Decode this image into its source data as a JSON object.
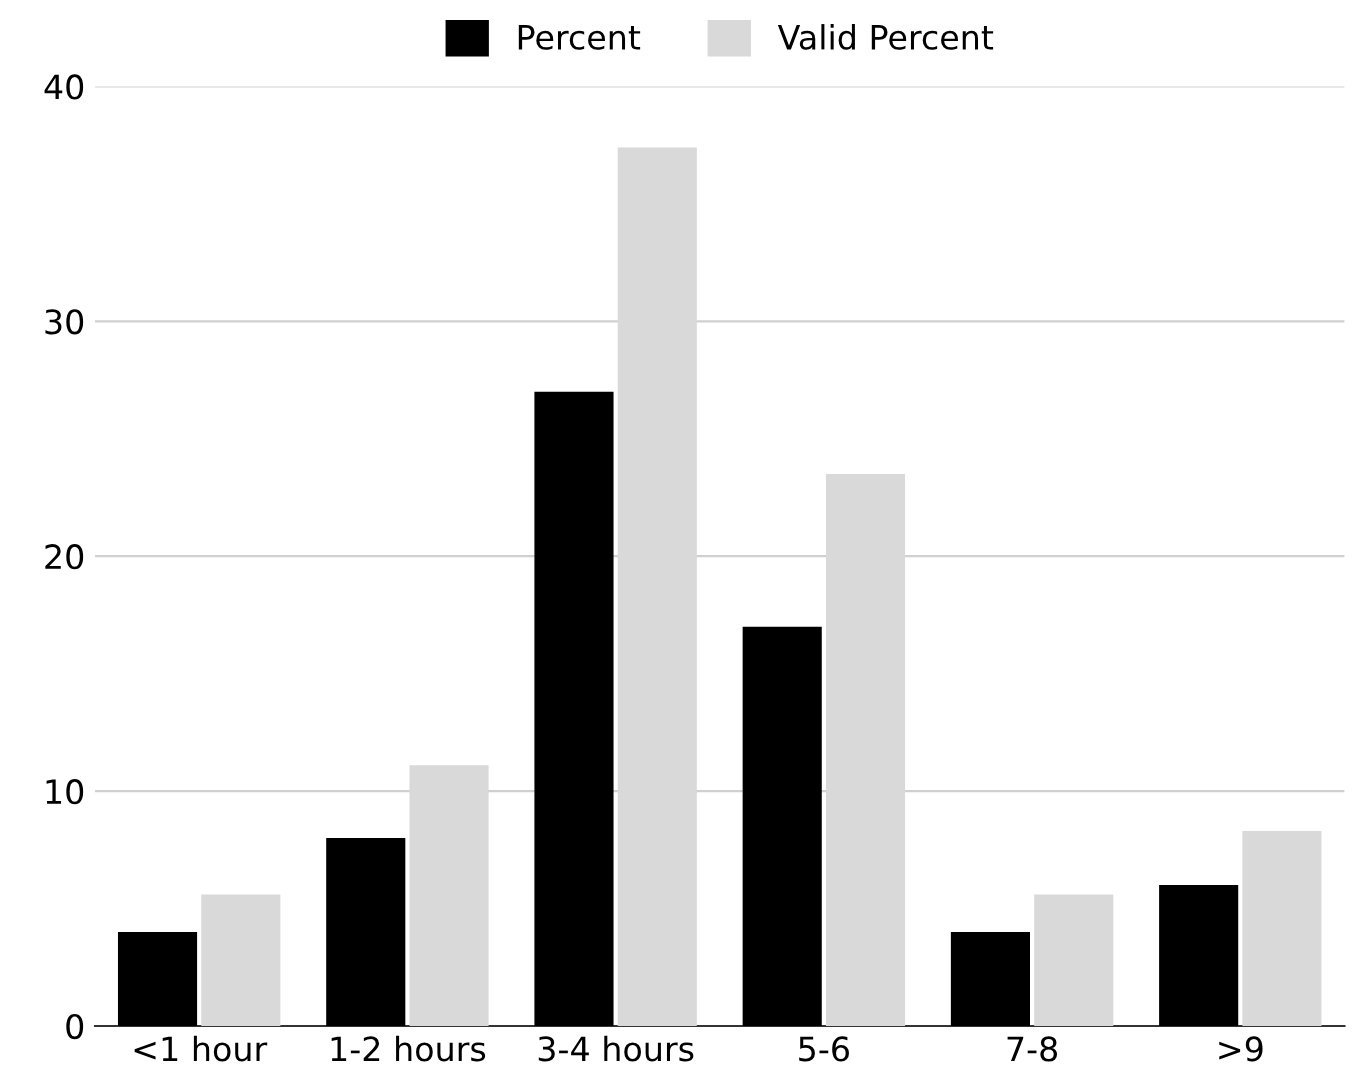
{
  "chart_data": {
    "type": "bar",
    "categories": [
      "<1 hour",
      "1-2 hours",
      "3-4 hours",
      "5-6",
      "7-8",
      ">9"
    ],
    "series": [
      {
        "name": "Percent",
        "color": "#000000",
        "values": [
          4.0,
          8.0,
          27.0,
          17.0,
          4.0,
          6.0
        ]
      },
      {
        "name": "Valid Percent",
        "color": "#d9d9d9",
        "values": [
          5.6,
          11.1,
          37.4,
          23.5,
          5.6,
          8.3
        ]
      }
    ],
    "ylim": [
      0,
      40
    ],
    "yticks": [
      0,
      10,
      20,
      30,
      40
    ],
    "grid": "y",
    "legend": "top"
  }
}
